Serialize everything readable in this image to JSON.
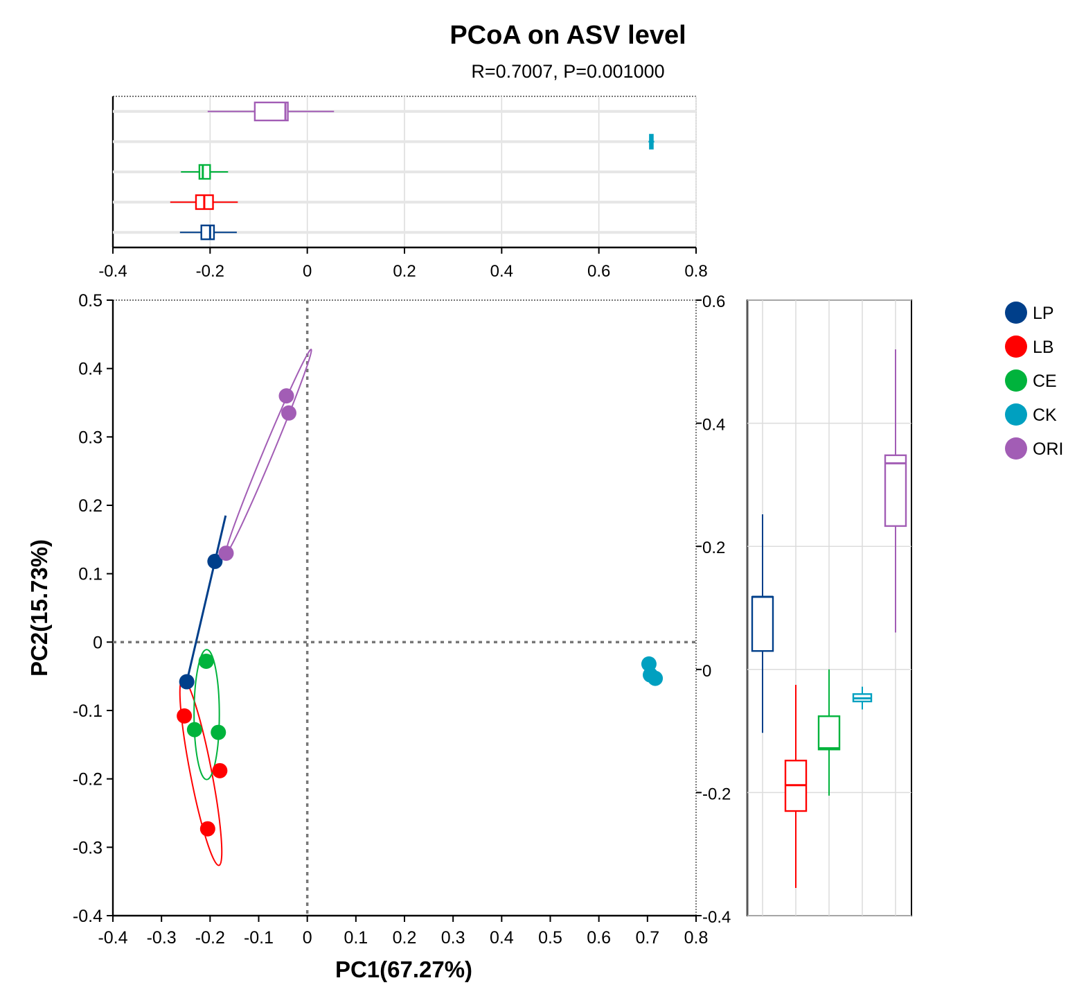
{
  "title": "PCoA on ASV level",
  "subtitle": "R=0.7007, P=0.001000",
  "chart_data": {
    "type": "scatter",
    "title": "PCoA on ASV level",
    "subtitle": "R=0.7007, P=0.001000",
    "xlabel": "PC1(67.27%)",
    "ylabel": "PC2(15.73%)",
    "xlim": [
      -0.4,
      0.8
    ],
    "ylim": [
      -0.4,
      0.5
    ],
    "xticks": [
      "-0.4",
      "-0.3",
      "-0.2",
      "-0.1",
      "0",
      "0.1",
      "0.2",
      "0.3",
      "0.4",
      "0.5",
      "0.6",
      "0.7",
      "0.8"
    ],
    "yticks": [
      "-0.4",
      "-0.3",
      "-0.2",
      "-0.1",
      "0",
      "0.1",
      "0.2",
      "0.3",
      "0.4",
      "0.5"
    ],
    "top_box_xticks": [
      "-0.4",
      "-0.2",
      "0",
      "0.2",
      "0.4",
      "0.6",
      "0.8"
    ],
    "right_box_ylim": [
      -0.4,
      0.6
    ],
    "right_box_yticks": [
      "-0.4",
      "-0.2",
      "0",
      "0.2",
      "0.4",
      "0.6"
    ],
    "series": [
      {
        "name": "LP",
        "color": "#003f8a",
        "points": [
          [
            -0.19,
            0.118
          ],
          [
            -0.248,
            -0.058
          ]
        ],
        "ellipse_line": [
          [
            -0.248,
            -0.058
          ],
          [
            -0.168,
            0.185
          ]
        ],
        "pc1_box": {
          "min": -0.262,
          "q1": -0.218,
          "median": -0.2,
          "q3": -0.192,
          "max": -0.145
        },
        "pc2_box": {
          "min": -0.103,
          "q1": 0.03,
          "median": 0.118,
          "q3": 0.118,
          "max": 0.252
        }
      },
      {
        "name": "LB",
        "color": "#ff0000",
        "points": [
          [
            -0.253,
            -0.108
          ],
          [
            -0.18,
            -0.188
          ],
          [
            -0.205,
            -0.273
          ]
        ],
        "ellipse": {
          "cx": -0.219,
          "cy": -0.19,
          "rx": 0.022,
          "ry": 0.139,
          "angle": -11
        },
        "pc1_box": {
          "min": -0.282,
          "q1": -0.229,
          "median": -0.212,
          "q3": -0.194,
          "max": -0.143
        },
        "pc2_box": {
          "min": -0.355,
          "q1": -0.23,
          "median": -0.188,
          "q3": -0.148,
          "max": -0.025
        }
      },
      {
        "name": "CE",
        "color": "#00b33c",
        "points": [
          [
            -0.208,
            -0.028
          ],
          [
            -0.232,
            -0.128
          ],
          [
            -0.183,
            -0.132
          ]
        ],
        "ellipse": {
          "cx": -0.207,
          "cy": -0.106,
          "rx": 0.026,
          "ry": 0.095,
          "angle": 0
        },
        "pc1_box": {
          "min": -0.26,
          "q1": -0.222,
          "median": -0.215,
          "q3": -0.2,
          "max": -0.163
        },
        "pc2_box": {
          "min": -0.205,
          "q1": -0.13,
          "median": -0.128,
          "q3": -0.076,
          "max": 0.0
        }
      },
      {
        "name": "CK",
        "color": "#00a0c0",
        "points": [
          [
            0.703,
            -0.032
          ],
          [
            0.706,
            -0.048
          ],
          [
            0.716,
            -0.053
          ]
        ],
        "pc1_box": {
          "min": 0.702,
          "q1": 0.705,
          "median": 0.708,
          "q3": 0.711,
          "max": 0.714
        },
        "pc2_box": {
          "min": -0.065,
          "q1": -0.052,
          "median": -0.047,
          "q3": -0.04,
          "max": -0.028
        }
      },
      {
        "name": "ORI",
        "color": "#a25db5",
        "points": [
          [
            -0.043,
            0.36
          ],
          [
            -0.038,
            0.335
          ],
          [
            -0.167,
            0.13
          ]
        ],
        "ellipse_line": [
          [
            -0.167,
            0.13
          ],
          [
            0.008,
            0.428
          ]
        ],
        "pc1_box": {
          "min": -0.205,
          "q1": -0.108,
          "median": -0.045,
          "q3": -0.04,
          "max": 0.055
        },
        "pc2_box": {
          "min": 0.06,
          "q1": 0.233,
          "median": 0.335,
          "q3": 0.348,
          "max": 0.52
        }
      }
    ]
  }
}
